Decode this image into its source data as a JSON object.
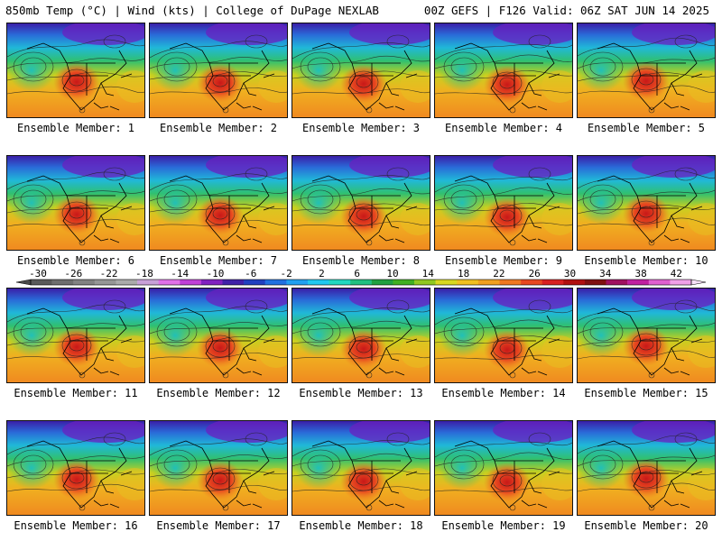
{
  "header": {
    "left": "850mb Temp (°C) | Wind (kts) | College of DuPage NEXLAB",
    "right": "00Z GEFS | F126 Valid: 06Z SAT JUN 14 2025"
  },
  "panels": [
    {
      "label": "Ensemble Member: 1"
    },
    {
      "label": "Ensemble Member: 2"
    },
    {
      "label": "Ensemble Member: 3"
    },
    {
      "label": "Ensemble Member: 4"
    },
    {
      "label": "Ensemble Member: 5"
    },
    {
      "label": "Ensemble Member: 6"
    },
    {
      "label": "Ensemble Member: 7"
    },
    {
      "label": "Ensemble Member: 8"
    },
    {
      "label": "Ensemble Member: 9"
    },
    {
      "label": "Ensemble Member: 10"
    },
    {
      "label": "Ensemble Member: 11"
    },
    {
      "label": "Ensemble Member: 12"
    },
    {
      "label": "Ensemble Member: 13"
    },
    {
      "label": "Ensemble Member: 14"
    },
    {
      "label": "Ensemble Member: 15"
    },
    {
      "label": "Ensemble Member: 16"
    },
    {
      "label": "Ensemble Member: 17"
    },
    {
      "label": "Ensemble Member: 18"
    },
    {
      "label": "Ensemble Member: 19"
    },
    {
      "label": "Ensemble Member: 20"
    }
  ],
  "colorbar": {
    "tick_labels": [
      "-30",
      "-26",
      "-22",
      "-18",
      "-14",
      "-10",
      "-6",
      "-2",
      "2",
      "6",
      "10",
      "14",
      "18",
      "22",
      "26",
      "30",
      "34",
      "38",
      "42"
    ],
    "colors": [
      "#5a5a5a",
      "#6e6e6e",
      "#828282",
      "#969696",
      "#aaaaaa",
      "#c8a0d8",
      "#e070e8",
      "#c040d8",
      "#8020c0",
      "#4020a8",
      "#2040c0",
      "#2070e0",
      "#20a0f0",
      "#20c8f0",
      "#20d8c0",
      "#20c080",
      "#20a040",
      "#40b020",
      "#90c820",
      "#d8d820",
      "#f0c020",
      "#f0a020",
      "#f07820",
      "#e84820",
      "#d82020",
      "#b01010",
      "#801010",
      "#a01060",
      "#c020a0",
      "#e060d0",
      "#f0a0e8"
    ]
  }
}
